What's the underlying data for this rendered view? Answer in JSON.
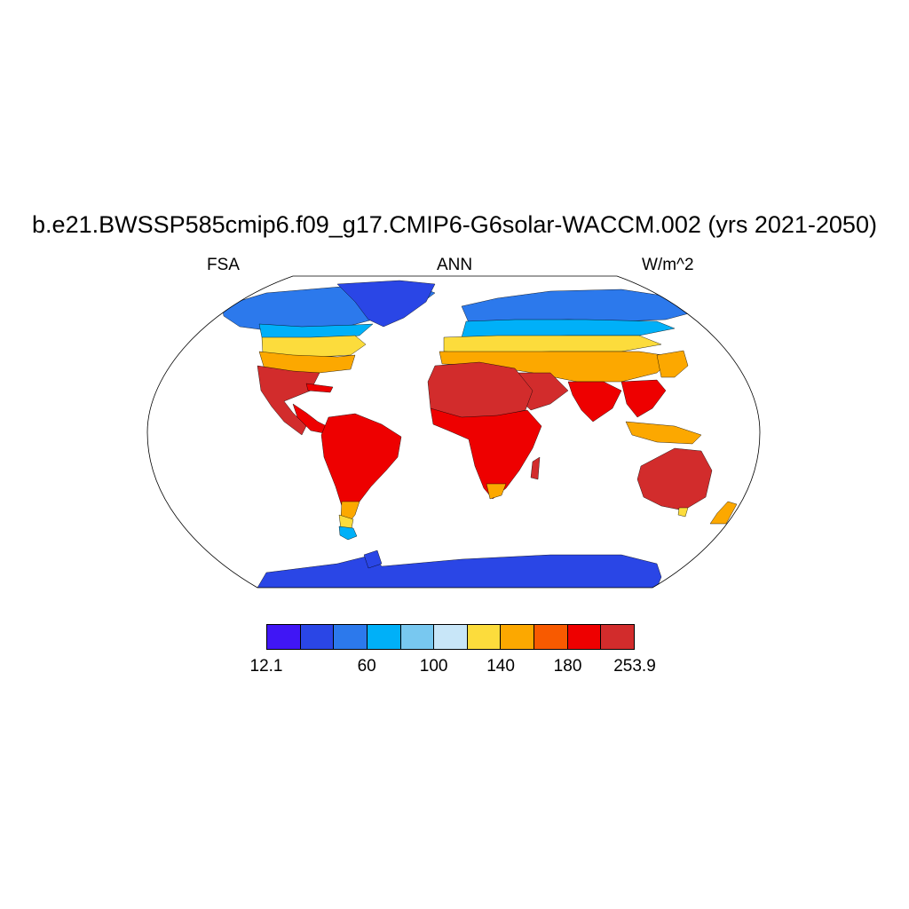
{
  "title": "b.e21.BWSSP585cmip6.f09_g17.CMIP6-G6solar-WACCM.002 (yrs 2021-2050)",
  "variable": "FSA",
  "period": "ANN",
  "units": "W/m^2",
  "colorbar": {
    "colors": [
      "#4016f5",
      "#2a46e6",
      "#2c79ec",
      "#00b0f8",
      "#78c8f0",
      "#c8e6f8",
      "#fcdc3c",
      "#fca800",
      "#f85a00",
      "#ee0000",
      "#d22c2c"
    ],
    "labels": [
      "12.1",
      "60",
      "100",
      "140",
      "180",
      "253.9"
    ]
  },
  "map": {
    "projection": "Robinson",
    "ocean_color": "#ffffff",
    "land_colors": {
      "polar": "#2a46e6",
      "high_lat": "#2c79ec",
      "subpolar": "#00b0f8",
      "cool": "#78c8f0",
      "temperate": "#fcdc3c",
      "warm": "#fca800",
      "hot": "#f85a00",
      "tropical": "#ee0000",
      "desert": "#d22c2c"
    }
  }
}
